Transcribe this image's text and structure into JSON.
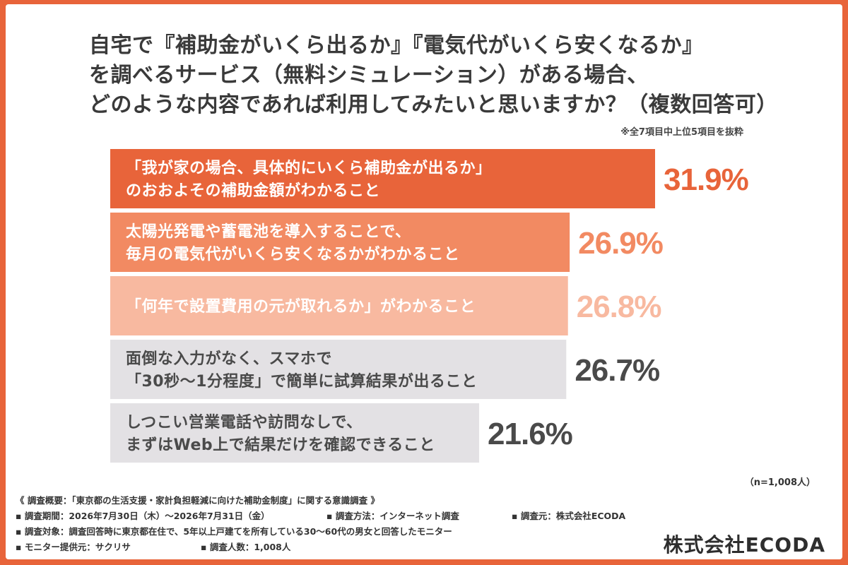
{
  "title_lines": [
    "自宅で『補助金がいくら出るか』『電気代がいくら安くなるか』",
    "を調べるサービス（無料シミュレーション）がある場合、",
    "どのような内容であれば利用してみたいと思いますか？（複数回答可）"
  ],
  "note_top": "※全7項目中上位5項目を抜粋",
  "sample_note": "（n=1,008人）",
  "chart_data": {
    "type": "bar",
    "orientation": "horizontal",
    "value_unit": "%",
    "categories": [
      [
        "「我が家の場合、具体的にいくら補助金が出るか」",
        "のおおよその補助金額がわかること"
      ],
      [
        "太陽光発電や蓄電池を導入することで、",
        "毎月の電気代がいくら安くなるかがわかること"
      ],
      [
        "「何年で設置費用の元が取れるか」がわかること"
      ],
      [
        "面倒な入力がなく、スマホで",
        "「30秒〜1分程度」で簡単に試算結果が出ること"
      ],
      [
        "しつこい営業電話や訪問なしで、",
        "まずはWeb上で結果だけを確認できること"
      ]
    ],
    "values": [
      31.9,
      26.9,
      26.8,
      26.7,
      21.6
    ],
    "value_labels": [
      "31.9%",
      "26.9%",
      "26.8%",
      "26.7%",
      "21.6%"
    ],
    "xlim": [
      0,
      35
    ],
    "grid": false,
    "colors": {
      "bars": [
        "#e8643a",
        "#f28a62",
        "#f8b9a0",
        "#e3e1e4",
        "#e3e1e4"
      ],
      "bar_text": [
        "#ffffff",
        "#ffffff",
        "#ffffff",
        "#4a4a4a",
        "#4a4a4a"
      ],
      "value_text": [
        "#e8643a",
        "#f28a62",
        "#f8b9a0",
        "#4a4a4a",
        "#4a4a4a"
      ]
    }
  },
  "footer": {
    "overview": "《 調査概要：「東京都の生活支援・家計負担軽減に向けた補助金制度」に関する意識調査 》",
    "period": "▪ 調査期間：2026年7月30日（木）〜2026年7月31日（金）",
    "method": "▪ 調査方法：インターネット調査",
    "source": "▪ 調査元：株式会社ECODA",
    "target": "▪ 調査対象：調査回答時に東京都在住で、5年以上戸建てを所有している30〜60代の男女と回答したモニター",
    "provider": "▪ モニター提供元：サクリサ",
    "respondents": "▪ 調査人数：1,008人"
  },
  "brand": "株式会社ECODA"
}
